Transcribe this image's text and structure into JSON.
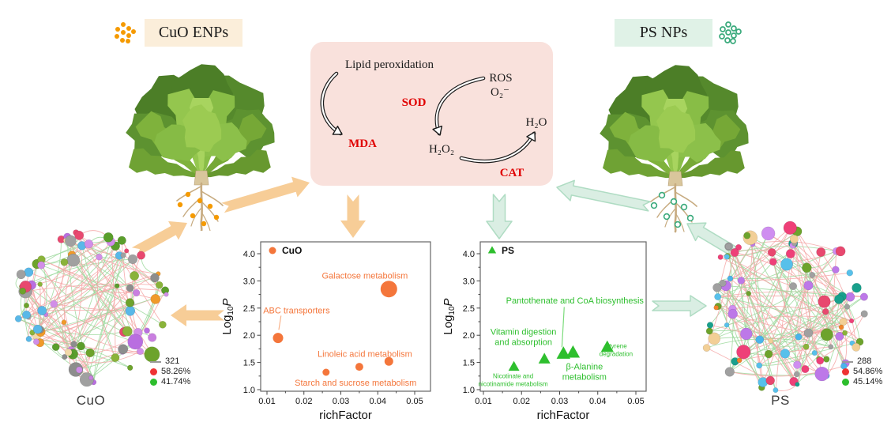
{
  "headers": {
    "cuo_label": "CuO ENPs",
    "ps_label": "PS NPs"
  },
  "icons": {
    "cuo_cluster": "orange-filled-nanoparticle-dots",
    "ps_cluster": "green-open-ring-nanoparticle-dots"
  },
  "pathway": {
    "lipid_peroxidation": "Lipid peroxidation",
    "mda": "MDA",
    "sod": "SOD",
    "ros": "ROS",
    "superoxide": "O₂⁻",
    "h2o2": "H₂O₂",
    "h2o": "H₂O",
    "cat": "CAT"
  },
  "colors": {
    "cuo_accent": "#f4763b",
    "ps_accent": "#2ebf2e",
    "orange_arrow_fill": "#f7cd97",
    "green_arrow_fill": "#daeee3",
    "green_arrow_stroke": "#afdcc3",
    "pathway_box_bg": "#f9e1dc",
    "cuo_tag_bg": "#fbeeda",
    "ps_tag_bg": "#e0f2e7",
    "enzyme_red": "#e00000",
    "network_edge_red": "#f5a7a7",
    "network_edge_green": "#9ed99e",
    "cuo_np_dot": "#f59a00",
    "ps_np_ring": "#3aaa7c"
  },
  "network_palettes": {
    "cuo": [
      "#c97fe0",
      "#b96ee0",
      "#6da32c",
      "#8ab33a",
      "#f09a2a",
      "#a0a0a0",
      "#59b8e8",
      "#e8486f",
      "#f2d9a8",
      "#d18ee8",
      "#8d8d8d",
      "#5a9e2b"
    ],
    "ps": [
      "#bd78e8",
      "#cf8ef0",
      "#6da32c",
      "#f0852a",
      "#a0a0a0",
      "#4ab4ea",
      "#ee4078",
      "#18a08c",
      "#f2cf96",
      "#57c0ea",
      "#e8486f",
      "#8ab33a"
    ]
  },
  "networks": {
    "cuo": {
      "title": "CuO",
      "legend": [
        {
          "swatch": "line",
          "color": "#999999",
          "label": "321"
        },
        {
          "swatch": "circle",
          "color": "#ee3333",
          "label": "58.26%"
        },
        {
          "swatch": "circle",
          "color": "#2dbe2d",
          "label": "41.74%"
        }
      ]
    },
    "ps": {
      "title": "PS",
      "legend": [
        {
          "swatch": "line",
          "color": "#999999",
          "label": "288"
        },
        {
          "swatch": "circle",
          "color": "#ee3333",
          "label": "54.86%"
        },
        {
          "swatch": "circle",
          "color": "#2dbe2d",
          "label": "45.14%"
        }
      ]
    }
  },
  "chart_data": [
    {
      "type": "scatter",
      "name": "CuO pathway enrichment",
      "marker": "circle",
      "color": "#f4763b",
      "leader_color": "#f8b289",
      "legend": "CuO",
      "xlabel": "richFactor",
      "ylabel_parts": [
        "Log",
        "10",
        "P"
      ],
      "xlim": [
        0.01,
        0.05
      ],
      "x_tick_labels": [
        "0.01",
        "0.02",
        "0.03",
        "0.04",
        "0.05"
      ],
      "y_tick_labels": [
        "1.0",
        "1.5",
        "2.0",
        "2.5",
        "3.0",
        "4.0"
      ],
      "points": [
        {
          "pathway": "ABC transporters",
          "x": 0.013,
          "y": 1.95,
          "size": 13
        },
        {
          "pathway": "Galactose metabolism",
          "x": 0.043,
          "y": 2.85,
          "size": 21
        },
        {
          "pathway": "Starch and sucrose metabolism",
          "x": 0.026,
          "y": 1.32,
          "size": 9
        },
        {
          "pathway": "Linoleic acid metabolism",
          "x": 0.035,
          "y": 1.42,
          "size": 10
        },
        {
          "pathway": "Linoleic acid metabolism",
          "x": 0.043,
          "y": 1.52,
          "size": 11
        }
      ],
      "annotations": [
        {
          "lines": [
            "Galactose metabolism"
          ],
          "x": 0.0365,
          "y": 3.2,
          "fs": 11
        },
        {
          "lines": [
            "ABC transporters"
          ],
          "x": 0.018,
          "y": 2.46,
          "fs": 11,
          "leader": [
            [
              0.0138,
              2.36
            ],
            [
              0.0132,
              2.1
            ]
          ]
        },
        {
          "lines": [
            "Linoleic acid metabolism"
          ],
          "x": 0.0365,
          "y": 1.66,
          "fs": 11
        },
        {
          "lines": [
            "Starch and sucrose metabolism"
          ],
          "x": 0.034,
          "y": 1.13,
          "fs": 11
        }
      ]
    },
    {
      "type": "scatter",
      "name": "PS pathway enrichment",
      "marker": "triangle",
      "color": "#2ebf2e",
      "leader_color": "#7ddc7d",
      "legend": "PS",
      "xlabel": "richFactor",
      "ylabel_parts": [
        "Log",
        "10",
        "P"
      ],
      "xlim": [
        0.01,
        0.05
      ],
      "x_tick_labels": [
        "0.01",
        "0.02",
        "0.03",
        "0.04",
        "0.05"
      ],
      "y_tick_labels": [
        "1.0",
        "1.5",
        "2.0",
        "2.5",
        "3.0",
        "4.0"
      ],
      "points": [
        {
          "pathway": "Nicotinate and nicotinamide metabolism",
          "x": 0.018,
          "y": 1.42,
          "size": 12
        },
        {
          "pathway": "Vitamin digestion and absorption",
          "x": 0.026,
          "y": 1.56,
          "size": 13
        },
        {
          "pathway": "Pantothenate and CoA biosynthesis",
          "x": 0.031,
          "y": 1.66,
          "size": 15
        },
        {
          "pathway": "β-Alanine metabolism",
          "x": 0.0335,
          "y": 1.68,
          "size": 15
        },
        {
          "pathway": "Styrene degradation",
          "x": 0.0425,
          "y": 1.78,
          "size": 14
        }
      ],
      "annotations": [
        {
          "lines": [
            "Pantothenate and CoA biosynthesis"
          ],
          "x": 0.034,
          "y": 2.64,
          "fs": 11,
          "leader": [
            [
              0.0312,
              2.52
            ],
            [
              0.0306,
              1.78
            ]
          ]
        },
        {
          "lines": [
            "Vitamin digestion",
            "and absorption"
          ],
          "x": 0.0205,
          "y": 1.97,
          "fs": 11
        },
        {
          "lines": [
            "Styrene",
            "degradation"
          ],
          "x": 0.0448,
          "y": 1.73,
          "fs": 8
        },
        {
          "lines": [
            "β-Alanine",
            "metabolism"
          ],
          "x": 0.0365,
          "y": 1.33,
          "fs": 11
        },
        {
          "lines": [
            "Nicotinate and",
            "nicotinamide metabolism"
          ],
          "x": 0.0178,
          "y": 1.18,
          "fs": 8
        }
      ]
    }
  ]
}
